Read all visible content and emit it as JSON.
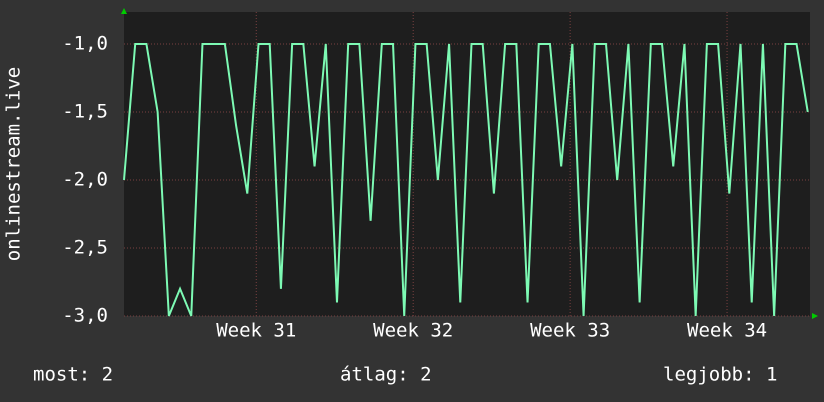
{
  "chart_data": {
    "type": "line",
    "y_label": "onlinestream.live",
    "x": [
      0,
      0.5,
      1,
      1.5,
      2,
      2.5,
      3,
      3.5,
      4,
      4.5,
      5,
      5.5,
      6,
      6.5,
      7,
      7.5,
      8,
      8.5,
      9,
      9.5,
      10,
      10.5,
      11,
      11.5,
      12,
      12.5,
      13,
      13.5,
      14,
      14.5,
      15,
      15.5,
      16,
      16.5,
      17,
      17.5,
      18,
      18.5,
      19,
      19.5,
      20,
      20.5,
      21,
      21.5,
      22,
      22.5,
      23,
      23.5,
      24,
      24.5,
      25,
      25.5,
      26,
      26.5,
      27,
      27.5,
      28,
      28.5,
      29,
      29.5,
      30,
      30.5
    ],
    "series": [
      {
        "color": "#7dfab4",
        "values": [
          -2.0,
          -1,
          -1,
          -1.5,
          -3.0,
          -2.8,
          -3.0,
          -1,
          -1,
          -1,
          -1.6,
          -2.1,
          -1,
          -1,
          -2.8,
          -1,
          -1,
          -1.9,
          -1,
          -2.9,
          -1,
          -1,
          -2.3,
          -1,
          -1,
          -3.0,
          -1,
          -1,
          -2.0,
          -1,
          -2.9,
          -1,
          -1,
          -2.1,
          -1,
          -1,
          -2.9,
          -1,
          -1,
          -1.9,
          -1,
          -3.0,
          -1,
          -1,
          -2.0,
          -1,
          -2.9,
          -1,
          -1,
          -1.9,
          -1,
          -3.0,
          -1,
          -1,
          -2.1,
          -1,
          -2.9,
          -1,
          -3.0,
          -1,
          -1,
          -1.5
        ]
      }
    ],
    "xlim": [
      0,
      30.6
    ],
    "xticks": [
      {
        "value": 5.9,
        "label": "Week 31"
      },
      {
        "value": 12.9,
        "label": "Week 32"
      },
      {
        "value": 19.9,
        "label": "Week 33"
      },
      {
        "value": 26.9,
        "label": "Week 34"
      }
    ],
    "ylim": [
      -3,
      -0.765
    ],
    "yticks": [
      {
        "value": -3,
        "label": "-3,0"
      },
      {
        "value": -2.5,
        "label": "-2,5"
      },
      {
        "value": -2,
        "label": "-2,0"
      },
      {
        "value": -1.5,
        "label": "-1,5"
      },
      {
        "value": -1,
        "label": "-1,0"
      }
    ],
    "grid": true,
    "footer": [
      "most: 2",
      "átlag: 2",
      "legjobb: 1"
    ]
  }
}
